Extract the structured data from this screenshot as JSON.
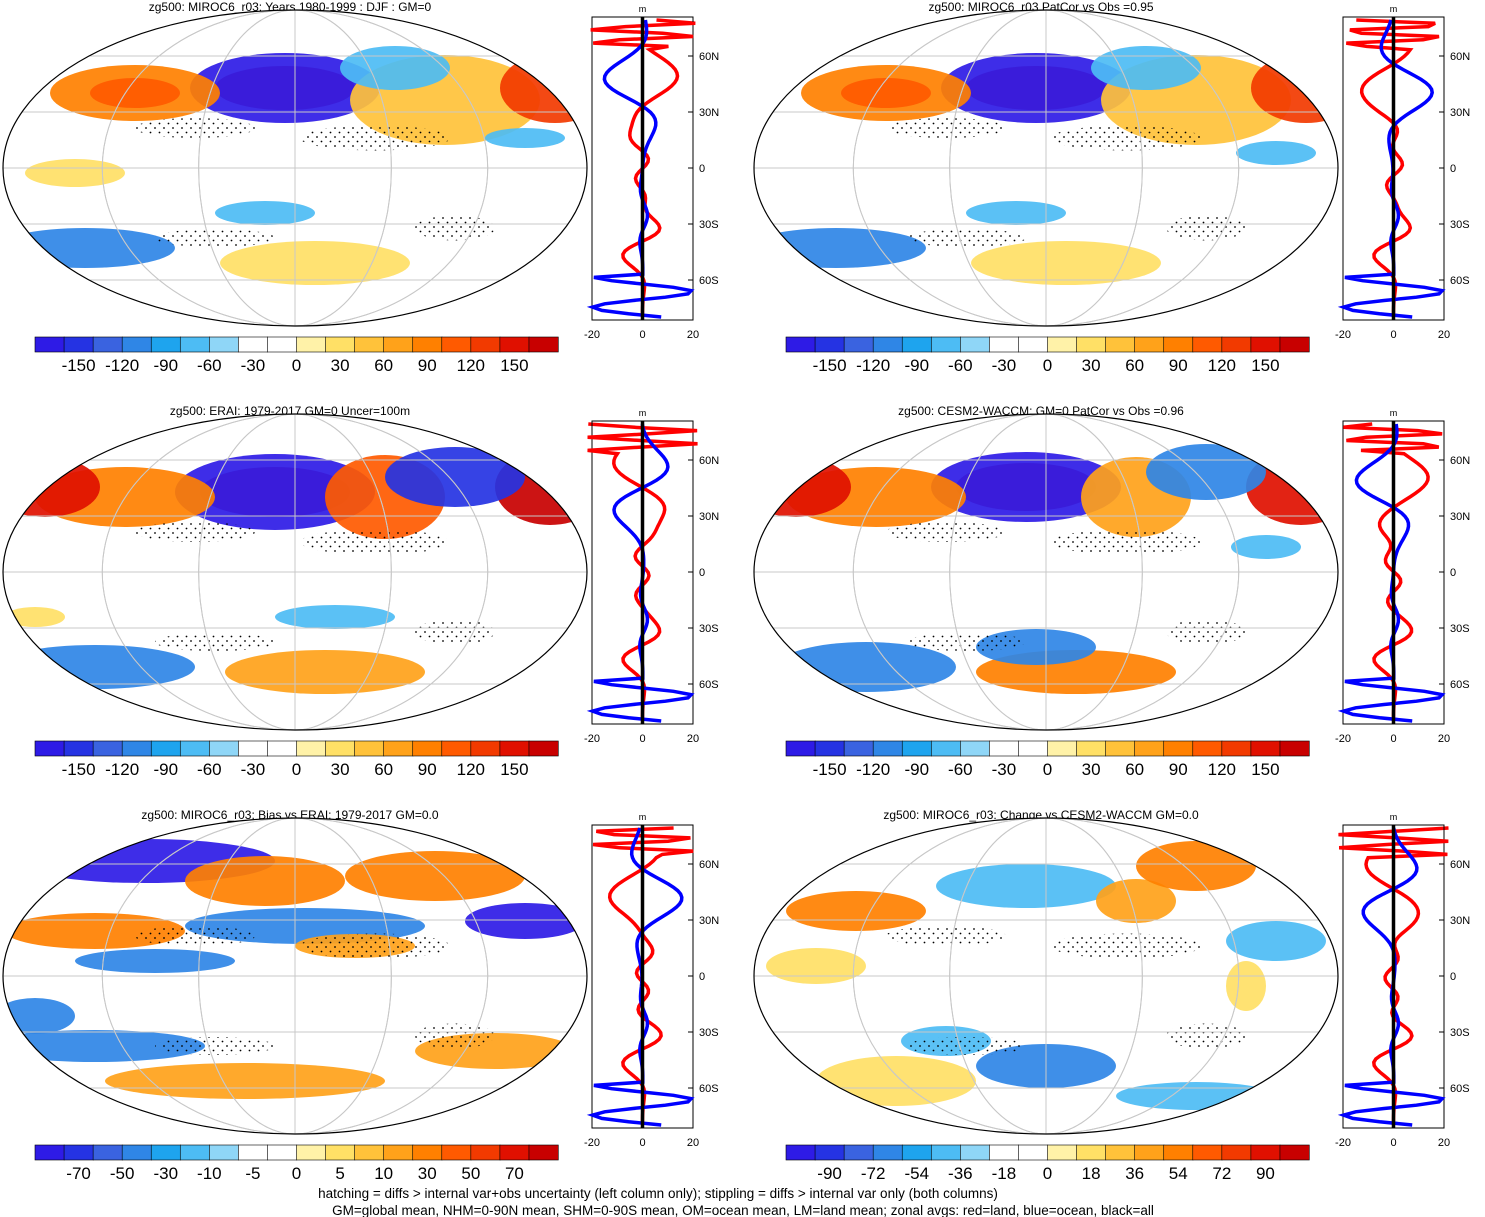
{
  "figure": {
    "footer": [
      "hatching = diffs > internal var+obs uncertainty (left column only); stippling = diffs > internal var only (both columns)",
      "GM=global mean, NHM=0-90N mean, SHM=0-90S mean, OM=ocean mean, LM=land mean; zonal avgs: red=land, blue=ocean, black=all"
    ],
    "lat_ticks": [
      "60N",
      "30N",
      "0",
      "30S",
      "60S"
    ],
    "colors": {
      "land": "#ff0000",
      "ocean": "#0000ff",
      "all": "#000000",
      "graticule": "#c8c8c8"
    }
  },
  "chart_data": [
    {
      "type": "heatmap",
      "title": "zg500: MIROC6_r03: Years 1980-1999 : DJF : GM=0",
      "colorbar_labels": [
        "-150",
        "-120",
        "-90",
        "-60",
        "-30",
        "0",
        "30",
        "60",
        "90",
        "120",
        "150"
      ],
      "zonal": {
        "type": "line",
        "unit": "m",
        "xlim": [
          -20,
          20
        ],
        "xticks": [
          "-20",
          "0",
          "20"
        ]
      }
    },
    {
      "type": "heatmap",
      "title": "zg500: MIROC6_r03 PatCor vs Obs =0.95",
      "colorbar_labels": [
        "-150",
        "-120",
        "-90",
        "-60",
        "-30",
        "0",
        "30",
        "60",
        "90",
        "120",
        "150"
      ],
      "zonal": {
        "type": "line",
        "unit": "m",
        "xlim": [
          -20,
          20
        ],
        "xticks": [
          "-20",
          "0",
          "20"
        ]
      }
    },
    {
      "type": "heatmap",
      "title": "zg500: ERAI: 1979-2017 GM=0 Uncer=100m",
      "colorbar_labels": [
        "-150",
        "-120",
        "-90",
        "-60",
        "-30",
        "0",
        "30",
        "60",
        "90",
        "120",
        "150"
      ],
      "zonal": {
        "type": "line",
        "unit": "m",
        "xlim": [
          -20,
          20
        ],
        "xticks": [
          "-20",
          "0",
          "20"
        ]
      }
    },
    {
      "type": "heatmap",
      "title": "zg500: CESM2-WACCM: GM=0 PatCor vs Obs =0.96",
      "colorbar_labels": [
        "-150",
        "-120",
        "-90",
        "-60",
        "-30",
        "0",
        "30",
        "60",
        "90",
        "120",
        "150"
      ],
      "zonal": {
        "type": "line",
        "unit": "m",
        "xlim": [
          -20,
          20
        ],
        "xticks": [
          "-20",
          "0",
          "20"
        ]
      }
    },
    {
      "type": "heatmap",
      "title": "zg500: MIROC6_r03: Bias vs ERAI: 1979-2017 GM=0.0",
      "colorbar_labels": [
        "-70",
        "-50",
        "-30",
        "-10",
        "-5",
        "0",
        "5",
        "10",
        "30",
        "50",
        "70"
      ],
      "zonal": {
        "type": "line",
        "unit": "m",
        "xlim": [
          -20,
          20
        ],
        "xticks": [
          "-20",
          "0",
          "20"
        ]
      }
    },
    {
      "type": "heatmap",
      "title": "zg500: MIROC6_r03: Change vs CESM2-WACCM GM=0.0",
      "colorbar_labels": [
        "-90",
        "-72",
        "-54",
        "-36",
        "-18",
        "0",
        "18",
        "36",
        "54",
        "72",
        "90"
      ],
      "zonal": {
        "type": "line",
        "unit": "m",
        "xlim": [
          -20,
          20
        ],
        "xticks": [
          "-20",
          "0",
          "20"
        ]
      }
    }
  ]
}
